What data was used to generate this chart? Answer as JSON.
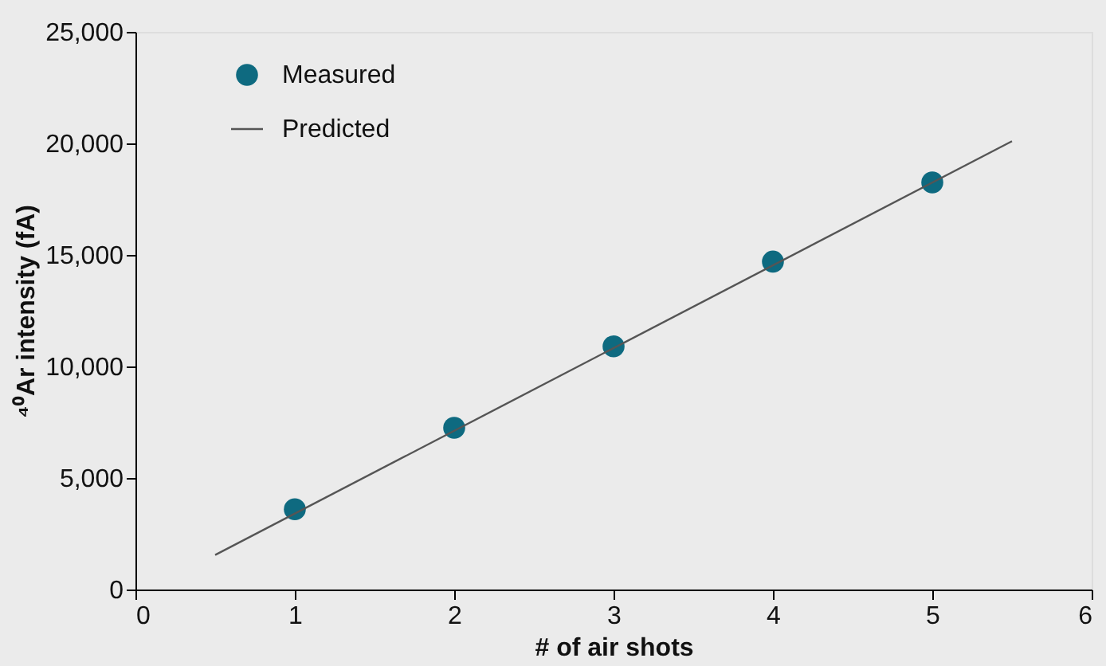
{
  "chart_data": {
    "type": "scatter",
    "xlabel": "# of air shots",
    "ylabel": "⁴⁰Ar intensity (fA)",
    "xlim": [
      0,
      6
    ],
    "xticks": [
      0,
      1,
      2,
      3,
      4,
      5,
      6
    ],
    "ylim": [
      0,
      25000
    ],
    "yticks": [
      {
        "value": 0,
        "label": "0"
      },
      {
        "value": 5000,
        "label": "5,000"
      },
      {
        "value": 10000,
        "label": "10,000"
      },
      {
        "value": 15000,
        "label": "15,000"
      },
      {
        "value": 20000,
        "label": "20,000"
      },
      {
        "value": 25000,
        "label": "25,000"
      }
    ],
    "grid": false,
    "legend": "top left",
    "series": [
      {
        "name": "Measured",
        "color": "#0e6a80",
        "marker": "circle",
        "x": [
          1,
          2,
          3,
          4,
          5
        ],
        "values": [
          3600,
          7250,
          10900,
          14700,
          18250
        ]
      },
      {
        "name": "Predicted",
        "type": "line",
        "color": "#555555",
        "marker": "none",
        "line_style": "solid",
        "x": [
          0.5,
          5.5
        ],
        "values": [
          1550,
          20100
        ]
      }
    ]
  }
}
